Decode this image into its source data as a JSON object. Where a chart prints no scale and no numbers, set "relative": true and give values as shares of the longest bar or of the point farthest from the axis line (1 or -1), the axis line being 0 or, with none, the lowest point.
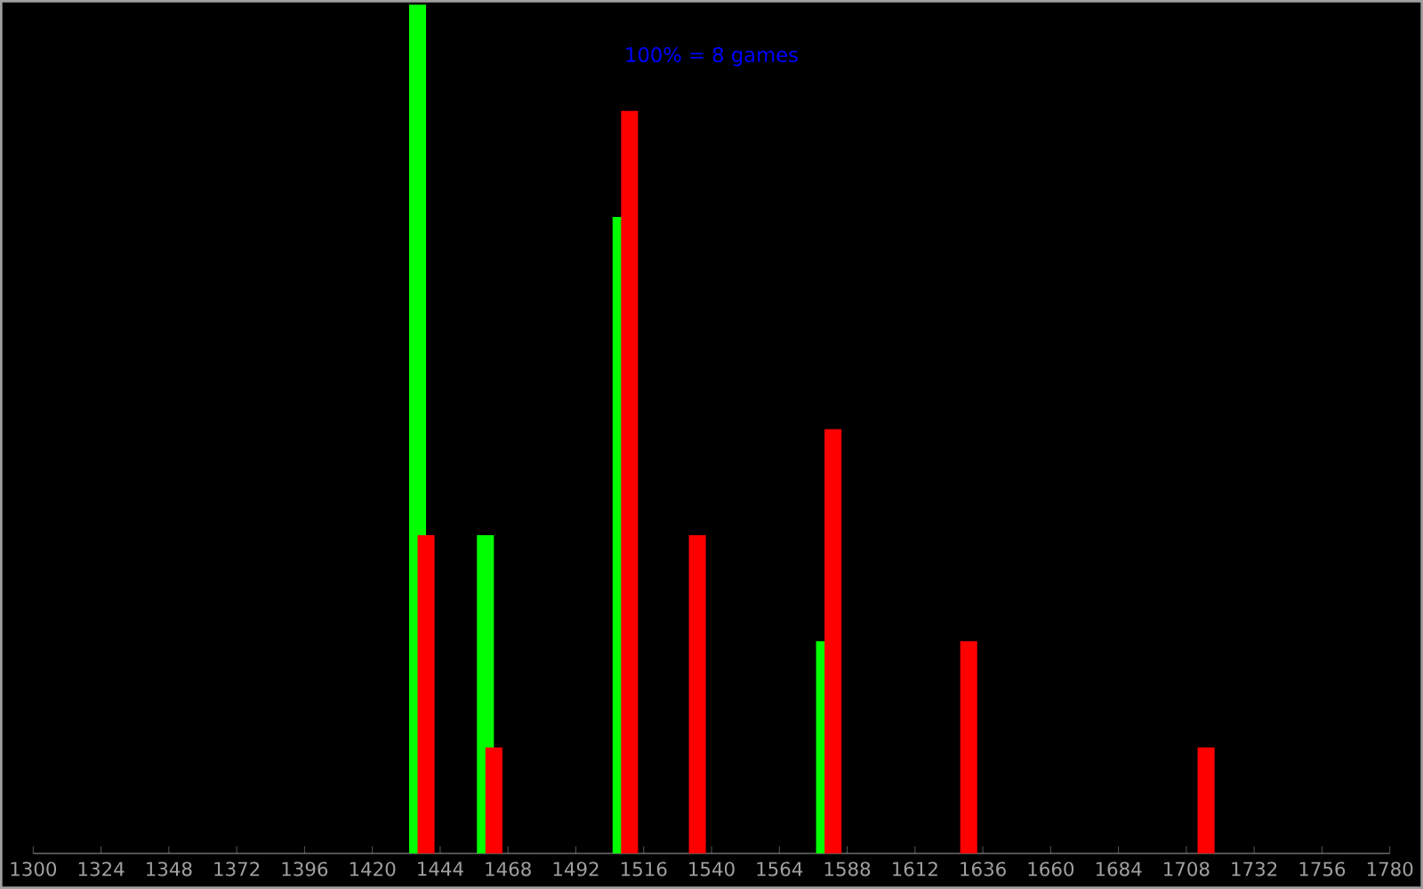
{
  "chart_data": {
    "type": "bar",
    "relative": true,
    "annotations": [
      "100% = 8 games"
    ],
    "xlim": [
      1300,
      1780
    ],
    "xticks": [
      1300,
      1324,
      1348,
      1372,
      1396,
      1420,
      1444,
      1468,
      1492,
      1516,
      1540,
      1564,
      1588,
      1612,
      1636,
      1660,
      1684,
      1708,
      1732,
      1756,
      1780
    ],
    "series": [
      {
        "color": "#00ff00",
        "x": [
          1436,
          1460,
          1508,
          1580
        ],
        "values": [
          1,
          0.375,
          0.75,
          0.25
        ]
      },
      {
        "color": "#ff0000",
        "x": [
          1439,
          1463,
          1511,
          1535,
          1583,
          1631,
          1715
        ],
        "values": [
          0.375,
          0.125,
          0.875,
          0.375,
          0.5,
          0.25,
          0.125
        ]
      }
    ]
  }
}
